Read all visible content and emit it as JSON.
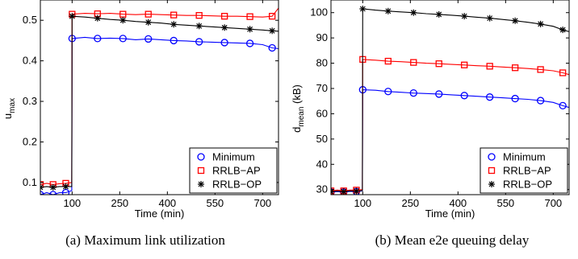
{
  "chart_data": [
    {
      "type": "line",
      "caption": "(a) Maximum link utilization",
      "xlabel": "Time (min)",
      "ylabel_main": "u",
      "ylabel_sub": "max",
      "xlim": [
        0,
        750
      ],
      "ylim": [
        0.07,
        0.55
      ],
      "xticks": [
        100,
        250,
        400,
        550,
        700
      ],
      "yticks": [
        0.1,
        0.2,
        0.3,
        0.4,
        0.5
      ],
      "ytick_labels": [
        "0.1",
        "0.2",
        "0.3",
        "0.4",
        "0.5"
      ],
      "legend_position": "bottom-right",
      "series": [
        {
          "name": "Minimum",
          "color": "#0000ff",
          "marker": "circle",
          "x": [
            0,
            20,
            40,
            60,
            80,
            99,
            100,
            140,
            180,
            220,
            260,
            300,
            340,
            380,
            420,
            460,
            500,
            540,
            580,
            620,
            660,
            700,
            730,
            750
          ],
          "y": [
            0.07,
            0.075,
            0.07,
            0.075,
            0.075,
            0.08,
            0.455,
            0.458,
            0.455,
            0.456,
            0.455,
            0.452,
            0.454,
            0.452,
            0.45,
            0.449,
            0.447,
            0.446,
            0.445,
            0.444,
            0.443,
            0.44,
            0.432,
            0.43
          ]
        },
        {
          "name": "RRLB−AP",
          "color": "#ff0000",
          "marker": "square",
          "x": [
            0,
            20,
            40,
            60,
            80,
            99,
            100,
            140,
            180,
            220,
            260,
            300,
            340,
            380,
            420,
            460,
            500,
            540,
            580,
            620,
            660,
            700,
            730,
            750
          ],
          "y": [
            0.095,
            0.098,
            0.095,
            0.097,
            0.098,
            0.1,
            0.515,
            0.517,
            0.516,
            0.517,
            0.515,
            0.514,
            0.515,
            0.514,
            0.513,
            0.512,
            0.512,
            0.511,
            0.51,
            0.51,
            0.509,
            0.508,
            0.51,
            0.53
          ]
        },
        {
          "name": "RRLB−OP",
          "color": "#000000",
          "marker": "asterisk",
          "x": [
            0,
            20,
            40,
            60,
            80,
            99,
            100,
            140,
            180,
            220,
            260,
            300,
            340,
            380,
            420,
            460,
            500,
            540,
            580,
            620,
            660,
            700,
            730,
            750
          ],
          "y": [
            0.088,
            0.09,
            0.088,
            0.09,
            0.09,
            0.09,
            0.51,
            0.508,
            0.505,
            0.502,
            0.5,
            0.497,
            0.495,
            0.493,
            0.49,
            0.488,
            0.486,
            0.484,
            0.482,
            0.48,
            0.478,
            0.476,
            0.474,
            0.473
          ]
        }
      ]
    },
    {
      "type": "line",
      "caption": "(b) Mean e2e queuing delay",
      "xlabel": "Time (min)",
      "ylabel_main": "d",
      "ylabel_sub": "mean",
      "ylabel_unit": " (kB)",
      "xlim": [
        0,
        750
      ],
      "ylim": [
        28,
        105
      ],
      "xticks": [
        100,
        250,
        400,
        550,
        700
      ],
      "yticks": [
        30,
        40,
        50,
        60,
        70,
        80,
        90,
        100
      ],
      "ytick_labels": [
        "30",
        "40",
        "50",
        "60",
        "70",
        "80",
        "90",
        "100"
      ],
      "legend_position": "bottom-right",
      "series": [
        {
          "name": "Minimum",
          "color": "#0000ff",
          "marker": "circle",
          "x": [
            0,
            20,
            40,
            60,
            80,
            99,
            100,
            140,
            180,
            220,
            260,
            300,
            340,
            380,
            420,
            460,
            500,
            540,
            580,
            620,
            660,
            700,
            730,
            750
          ],
          "y": [
            29,
            29.2,
            29,
            29.3,
            29.2,
            29.5,
            69.5,
            69.3,
            68.8,
            68.5,
            68.2,
            68,
            67.8,
            67.5,
            67.2,
            66.9,
            66.6,
            66.3,
            66,
            65.7,
            65.2,
            64.5,
            63.2,
            62.5
          ]
        },
        {
          "name": "RRLB−AP",
          "color": "#ff0000",
          "marker": "square",
          "x": [
            0,
            20,
            40,
            60,
            80,
            99,
            100,
            140,
            180,
            220,
            260,
            300,
            340,
            380,
            420,
            460,
            500,
            540,
            580,
            620,
            660,
            700,
            730,
            750
          ],
          "y": [
            29.5,
            29.8,
            29.5,
            29.8,
            29.8,
            30,
            81.5,
            81.2,
            80.8,
            80.6,
            80.3,
            80,
            79.8,
            79.5,
            79.3,
            79,
            78.8,
            78.5,
            78.2,
            77.9,
            77.5,
            77,
            76.2,
            75.5
          ]
        },
        {
          "name": "RRLB−OP",
          "color": "#000000",
          "marker": "asterisk",
          "x": [
            0,
            20,
            40,
            60,
            80,
            99,
            100,
            140,
            180,
            220,
            260,
            300,
            340,
            380,
            420,
            460,
            500,
            540,
            580,
            620,
            660,
            700,
            730,
            750
          ],
          "y": [
            29.2,
            29.4,
            29.2,
            29.5,
            29.4,
            29.6,
            101.5,
            101,
            100.6,
            100.3,
            100,
            99.6,
            99.3,
            99,
            98.6,
            98.2,
            97.8,
            97.3,
            96.8,
            96.2,
            95.5,
            94.6,
            93.2,
            92.5
          ]
        }
      ]
    }
  ]
}
